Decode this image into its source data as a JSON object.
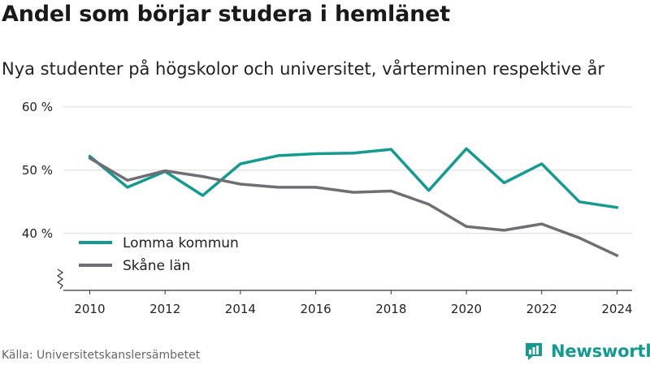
{
  "header": {
    "title": "Andel som börjar studera i hemlänet",
    "subtitle": "Nya studenter på högskolor och universitet, vårterminen respektive år"
  },
  "footer": {
    "source": "Källa: Universitetskanslersämbetet",
    "brand": "Newsworthy"
  },
  "colors": {
    "lomma": "#139a91",
    "skane": "#706e74",
    "grid": "#dcdcdc",
    "axis": "#333333",
    "brand": "#139a91"
  },
  "chart_data": {
    "type": "line",
    "title": "Andel som börjar studera i hemlänet",
    "subtitle": "Nya studenter på högskolor och universitet, vårterminen respektive år",
    "x": [
      2010,
      2011,
      2012,
      2013,
      2014,
      2015,
      2016,
      2017,
      2018,
      2019,
      2020,
      2021,
      2022,
      2023,
      2024
    ],
    "xticks": [
      2010,
      2012,
      2014,
      2016,
      2018,
      2020,
      2022,
      2024
    ],
    "yticks": [
      {
        "value": 40,
        "label": "40 %"
      },
      {
        "value": 50,
        "label": "50 %"
      },
      {
        "value": 60,
        "label": "60 %"
      }
    ],
    "ylim": [
      31,
      61
    ],
    "xlim": [
      2009.3,
      2024.4
    ],
    "grid": true,
    "axis_break": true,
    "legend_position": "bottom-left",
    "series": [
      {
        "name": "Lomma kommun",
        "color": "#139a91",
        "values": [
          52.2,
          47.3,
          49.8,
          46.0,
          51.0,
          52.3,
          52.6,
          52.7,
          53.3,
          46.8,
          53.4,
          48.0,
          51.0,
          45.0,
          44.1
        ]
      },
      {
        "name": "Skåne län",
        "color": "#706e74",
        "values": [
          51.9,
          48.4,
          49.9,
          49.0,
          47.8,
          47.3,
          47.3,
          46.5,
          46.7,
          44.6,
          41.1,
          40.5,
          41.5,
          39.3,
          36.5
        ]
      }
    ]
  }
}
